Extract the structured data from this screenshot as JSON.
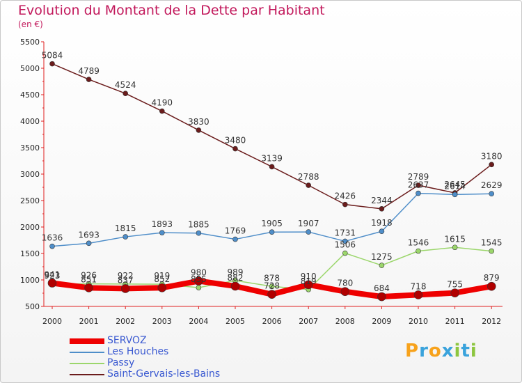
{
  "title": "Evolution du Montant de la Dette par Habitant",
  "subtitle": "(en €)",
  "logo": {
    "letters": [
      "P",
      "r",
      "o",
      "x",
      "i",
      "t",
      "i"
    ],
    "colors": [
      "#f7a21b",
      "#3aa3dc",
      "#f7a21b",
      "#3aa3dc",
      "#8dc63f",
      "#3aa3dc",
      "#8dc63f"
    ]
  },
  "chart_data": {
    "type": "line",
    "x": [
      "2000",
      "2001",
      "2002",
      "2003",
      "2004",
      "2005",
      "2006",
      "2007",
      "2008",
      "2009",
      "2010",
      "2011",
      "2012"
    ],
    "ylim": [
      500,
      5500
    ],
    "yticks": [
      500,
      1000,
      1500,
      2000,
      2500,
      3000,
      3500,
      4000,
      4500,
      5000,
      5500
    ],
    "grid": false,
    "legend_position": "bottom-left",
    "series": [
      {
        "name": "Saint-Gervais-les-Bains",
        "color": "#6b1c1c",
        "width": 1.5,
        "values": [
          5084,
          4789,
          4524,
          4190,
          3830,
          3480,
          3139,
          2788,
          2426,
          2344,
          2789,
          2645,
          3180
        ],
        "labels": [
          "5084",
          "4789",
          "4524",
          "4190",
          "3830",
          "3480",
          "3139",
          "2788",
          "2426",
          "2344",
          "2789",
          "2645",
          "3180"
        ]
      },
      {
        "name": "Les Houches",
        "color": "#4f8ec9",
        "width": 1.5,
        "values": [
          1636,
          1693,
          1815,
          1893,
          1885,
          1769,
          1905,
          1907,
          1731,
          1918,
          2637,
          2614,
          2629
        ],
        "labels": [
          "1636",
          "1693",
          "1815",
          "1893",
          "1885",
          "1769",
          "1905",
          "1907",
          "1731",
          "1918",
          "2637",
          "2614",
          "2629"
        ]
      },
      {
        "name": "Passy",
        "color": "#9bd66b",
        "width": 1.5,
        "values": [
          923,
          926,
          922,
          919,
          855,
          989,
          878,
          819,
          1506,
          1275,
          1546,
          1615,
          1545
        ],
        "labels": [
          "923",
          "926",
          "922",
          "919",
          "855",
          "989",
          "878",
          "819",
          "1506",
          "1275",
          "1546",
          "1615",
          "1545"
        ]
      },
      {
        "name": "SERVOZ",
        "color": "#ee0000",
        "width": 8,
        "values": [
          941,
          851,
          837,
          852,
          980,
          882,
          728,
          910,
          780,
          684,
          718,
          755,
          879
        ],
        "labels": [
          "941",
          "851",
          "837",
          "852",
          "980",
          "882",
          "728",
          "910",
          "780",
          "684",
          "718",
          "755",
          "879"
        ]
      }
    ],
    "legend": [
      "SERVOZ",
      "Les Houches",
      "Passy",
      "Saint-Gervais-les-Bains"
    ]
  }
}
